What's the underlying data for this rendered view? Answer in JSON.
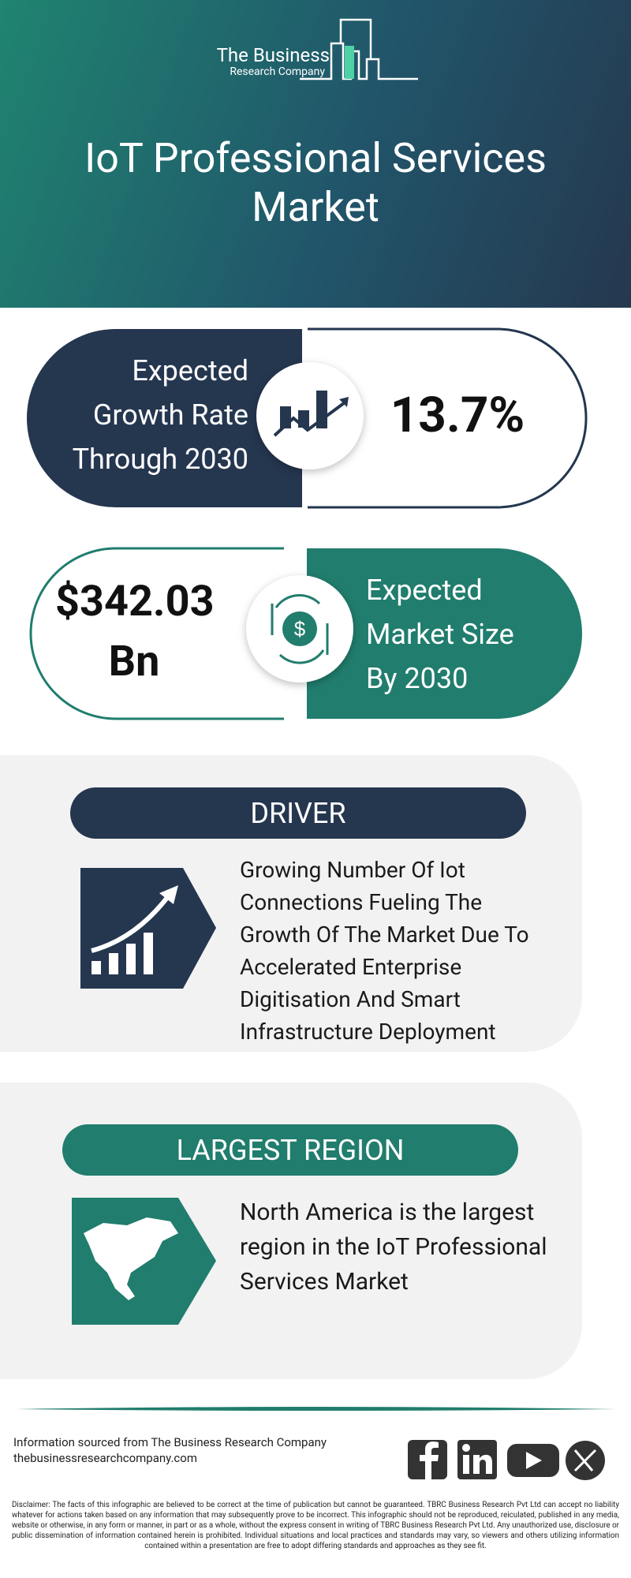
{
  "header": {
    "logo_line1": "The Business",
    "logo_line2": "Research Company",
    "title": "IoT Professional Services Market"
  },
  "growth": {
    "label": "Expected Growth Rate Through 2030",
    "value": "13.7%"
  },
  "market_size": {
    "value": "$342.03 Bn",
    "label": "Expected Market Size By 2030"
  },
  "driver": {
    "heading": "DRIVER",
    "text": "Growing Number Of Iot Connections Fueling The Growth Of The Market Due To Accelerated Enterprise Digitisation And Smart Infrastructure Deployment"
  },
  "region": {
    "heading": "LARGEST REGION",
    "text": "North America is the largest region in the IoT Professional Services Market"
  },
  "footer": {
    "source": "Information sourced from The Business Research Company",
    "website": "thebusinessresearchcompany.com",
    "disclaimer": "Disclaimer: The facts of this infographic are believed to be correct at the time of publication but cannot be guaranteed. TBRC Business Research Pvt Ltd can accept no liability whatever for actions taken based on any information that may subsequently prove to be incorrect. This infographic should not be reproduced, reiculated, published in any media, website or otherwise, in any form or manner, in part or as a whole, without the express consent in writing of TBRC Business Research Pvt Ltd. Any unauthorized use, disclosure or public dissemination of information contained herein is prohibited. Individual situations and local practices and standards may vary, so viewers and others utilizing information contained within a presentation are free to adopt differing standards and approaches as they see fit."
  }
}
